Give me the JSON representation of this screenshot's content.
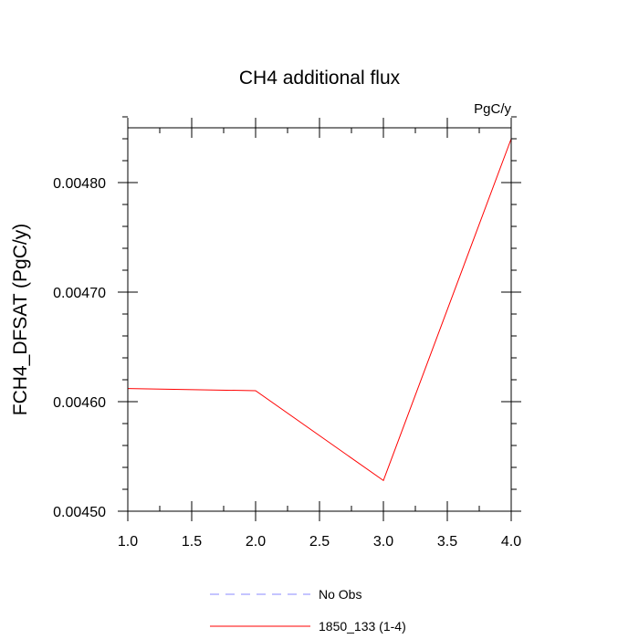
{
  "chart_data": {
    "type": "line",
    "title": "CH4 additional flux",
    "units_label": "PgC/y",
    "xlabel": "",
    "ylabel": "FCH4_DFSAT  (PgC/y)",
    "xlim": [
      1.0,
      4.0
    ],
    "ylim": [
      0.0045,
      0.00485
    ],
    "x_ticks": [
      1.0,
      1.5,
      2.0,
      2.5,
      3.0,
      3.5,
      4.0
    ],
    "x_tick_labels": [
      "1.0",
      "1.5",
      "2.0",
      "2.5",
      "3.0",
      "3.5",
      "4.0"
    ],
    "y_ticks": [
      0.0045,
      0.0046,
      0.0047,
      0.0048
    ],
    "y_tick_labels": [
      "0.00450",
      "0.00460",
      "0.00470",
      "0.00480"
    ],
    "y_minor_step": 2e-05,
    "x_minor_step": 0.25,
    "grid": false,
    "legend_position": "bottom",
    "series": [
      {
        "name": "1850_133 (1-4)",
        "color": "#ff0000",
        "style": "solid",
        "x": [
          1,
          2,
          3,
          4
        ],
        "y": [
          0.004612,
          0.00461,
          0.004528,
          0.00484
        ]
      }
    ],
    "legend": [
      {
        "label": "No Obs",
        "color": "#8888ff",
        "style": "dashed"
      },
      {
        "label": "1850_133 (1-4)",
        "color": "#ff0000",
        "style": "solid"
      }
    ]
  }
}
